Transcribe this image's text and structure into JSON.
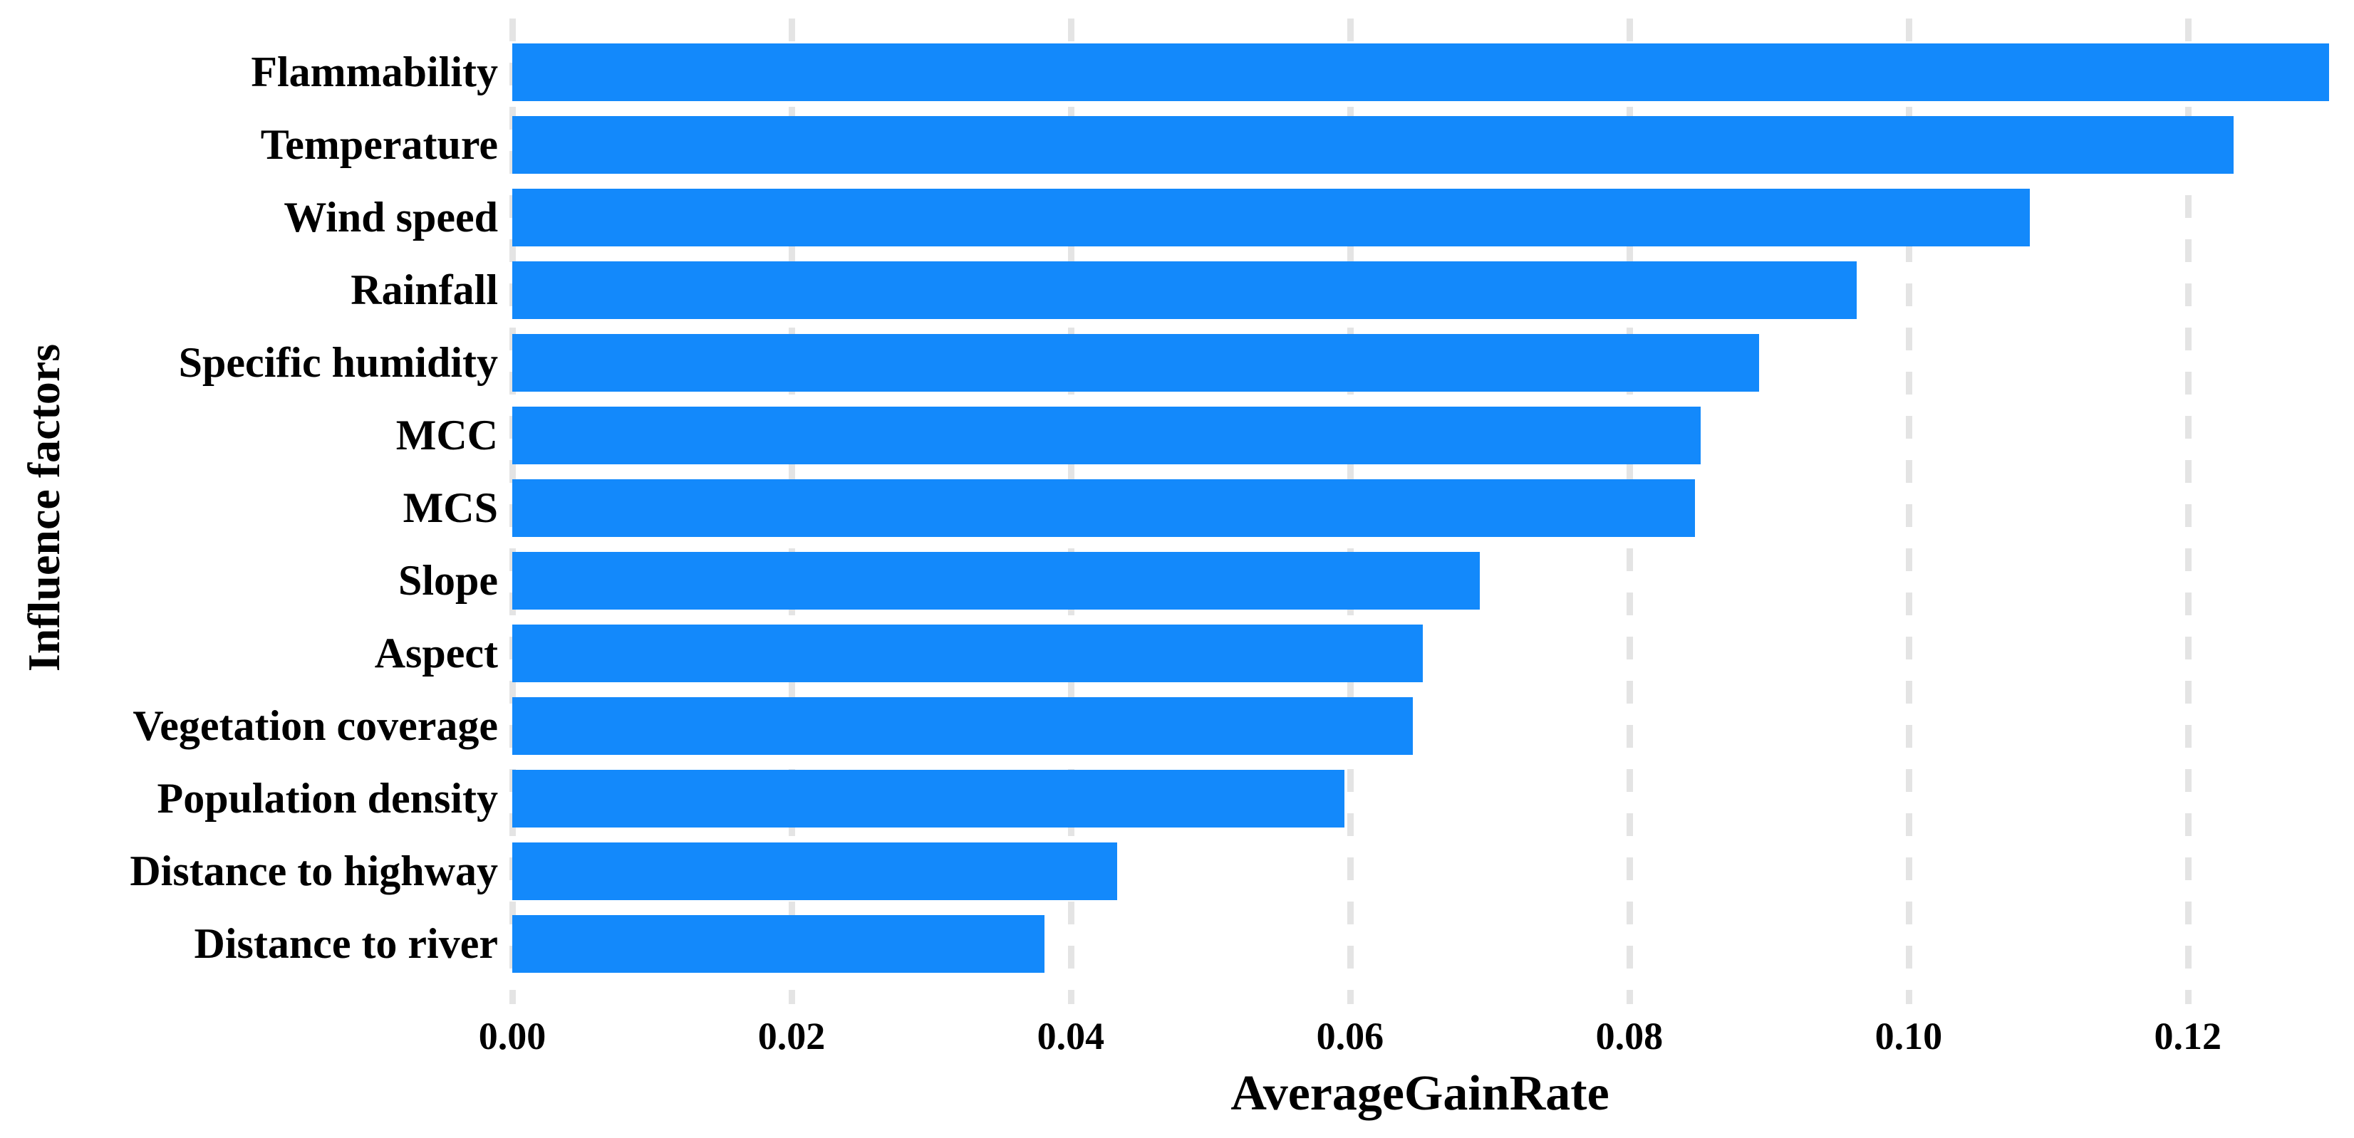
{
  "chart_data": {
    "type": "bar",
    "orientation": "horizontal",
    "title": "",
    "xlabel": "AverageGainRate",
    "ylabel": "Influence factors",
    "categories": [
      "Flammability",
      "Temperature",
      "Wind speed",
      "Rainfall",
      "Specific humidity",
      "MCC",
      "MCS",
      "Slope",
      "Aspect",
      "Vegetation coverage",
      "Population density",
      "Distance to highway",
      "Distance to river"
    ],
    "values": [
      0.1301,
      0.1233,
      0.1087,
      0.0963,
      0.0893,
      0.0851,
      0.0847,
      0.0693,
      0.0652,
      0.0645,
      0.0596,
      0.0433,
      0.0381
    ],
    "xticks": [
      0.0,
      0.02,
      0.04,
      0.06,
      0.08,
      0.1,
      0.12
    ],
    "xtick_labels": [
      "0.00",
      "0.02",
      "0.04",
      "0.06",
      "0.08",
      "0.10",
      "0.12"
    ],
    "xlim": [
      0,
      0.1319
    ],
    "grid": "vertical-dashed",
    "legend": "none",
    "bar_color": "#1389fb",
    "gridline_color": "#e4e4e4",
    "text_color": "#000000",
    "background_color": "#ffffff"
  }
}
